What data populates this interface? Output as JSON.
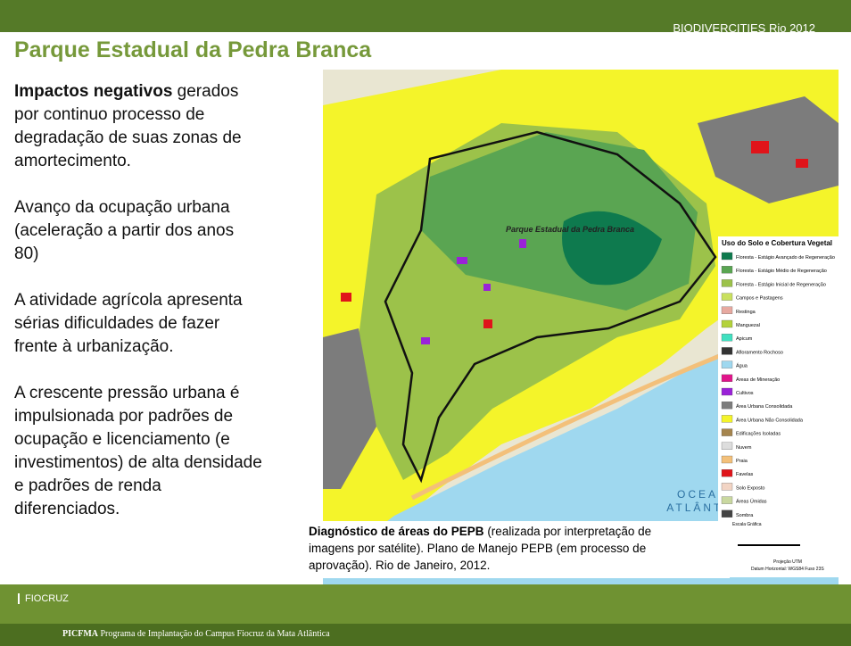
{
  "header": {
    "tag": "BIODIVERCITIES  Rio 2012",
    "title": "Parque Estadual da Pedra Branca"
  },
  "paragraphs": [
    {
      "bold": "Impactos negativos",
      "lines": [
        " gerados",
        "por continuo processo de",
        "degradação de suas zonas de",
        "amortecimento."
      ]
    },
    {
      "lines": [
        "Avanço da ocupação urbana",
        "(aceleração a partir dos anos",
        "80)"
      ]
    },
    {
      "lines": [
        "A atividade agrícola apresenta",
        "sérias dificuldades de fazer",
        "frente à urbanização."
      ]
    },
    {
      "lines": [
        "A crescente pressão urbana é",
        "impulsionada por padrões de",
        "ocupação e licenciamento (e",
        "investimentos) de alta densidade",
        "e padrões de renda",
        "diferenciados."
      ]
    }
  ],
  "map": {
    "park_label": "Parque Estadual da Pedra Branca",
    "ocean_label": [
      "OCEANO",
      "ATLÂNTICO"
    ],
    "legend": {
      "title": "Uso do Solo e Cobertura Vegetal",
      "items": [
        {
          "label": "Floresta - Estágio Avançado de Regeneração",
          "color": "#0e7a4e"
        },
        {
          "label": "Floresta - Estágio Médio de Regeneração",
          "color": "#5aa552"
        },
        {
          "label": "Floresta - Estágio Inicial de Regeneração",
          "color": "#9cc24a"
        },
        {
          "label": "Campos e Pastagens",
          "color": "#c9e05e"
        },
        {
          "label": "Restinga",
          "color": "#e7a9a0"
        },
        {
          "label": "Manguezal",
          "color": "#b3d23a"
        },
        {
          "label": "Apicum",
          "color": "#40e0c0"
        },
        {
          "label": "Afloramento Rochoso",
          "color": "#333333"
        },
        {
          "label": "Água",
          "color": "#9fd8ef"
        },
        {
          "label": "Áreas de Mineração",
          "color": "#e0158a"
        },
        {
          "label": "Cultivos",
          "color": "#9a22d8"
        },
        {
          "label": "Área Urbana Consolidada",
          "color": "#7c7c7c"
        },
        {
          "label": "Área Urbana Não Consolidada",
          "color": "#f4f42a"
        },
        {
          "label": "Edificações Isoladas",
          "color": "#a5854e"
        },
        {
          "label": "Nuvem",
          "color": "#dddddd"
        },
        {
          "label": "Praia",
          "color": "#f3c07a"
        },
        {
          "label": "Favelas",
          "color": "#e0141a"
        },
        {
          "label": "Solo Exposto",
          "color": "#f2d4c4"
        },
        {
          "label": "Áreas Úmidas",
          "color": "#c9d8a0"
        },
        {
          "label": "Sombra",
          "color": "#444444"
        }
      ]
    },
    "scale": {
      "title": "Escala Gráfica",
      "projection": "Projeção UTM",
      "datum": "Datum Horizontal: WGS84  Fuso 23S"
    }
  },
  "caption": {
    "bold": "Diagnóstico de áreas do PEPB",
    "lines": [
      " (realizada por interpretação de",
      "imagens por satélite). Plano de Manejo PEPB (em processo de",
      "aprovação). Rio de Janeiro, 2012."
    ]
  },
  "footer": {
    "logo": "FIOCRUZ",
    "program_bold": "PICFMA",
    "program": " Programa de Implantação do Campus Fiocruz da Mata Atlântica"
  }
}
